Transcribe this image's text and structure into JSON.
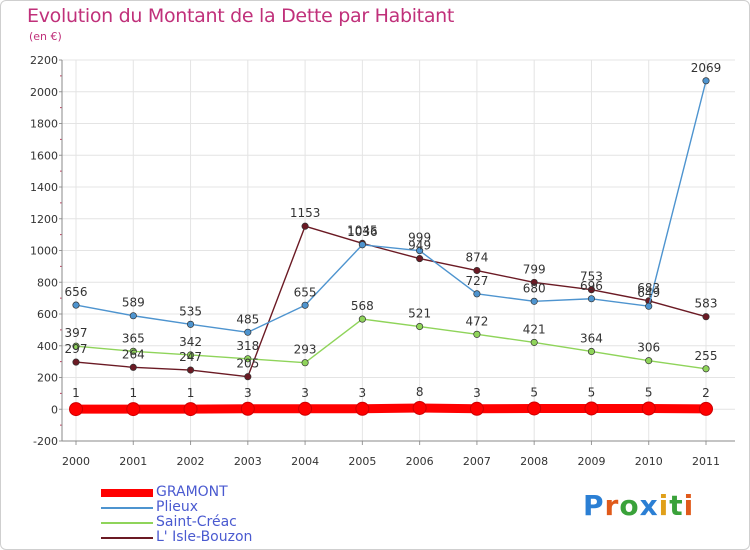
{
  "title": "Evolution du Montant de la Dette par Habitant",
  "subtitle": "(en €)",
  "brand": {
    "letters": [
      "P",
      "r",
      "o",
      "x",
      "i",
      "t",
      "i"
    ],
    "colors": [
      "#2b7fd4",
      "#e05a1a",
      "#3aa23a",
      "#2b7fd4",
      "#e0a01a",
      "#3aa23a",
      "#e05a1a"
    ]
  },
  "chart_data": {
    "type": "line",
    "x": [
      "2000",
      "2001",
      "2002",
      "2003",
      "2004",
      "2005",
      "2006",
      "2007",
      "2008",
      "2009",
      "2010",
      "2011"
    ],
    "ylim": [
      -200,
      2200
    ],
    "yticks": [
      "-200",
      "0",
      "200",
      "400",
      "600",
      "800",
      "1000",
      "1200",
      "1400",
      "1600",
      "1800",
      "2000",
      "2200"
    ],
    "ytick_values": [
      -200,
      0,
      200,
      400,
      600,
      800,
      1000,
      1200,
      1400,
      1600,
      1800,
      2000,
      2200
    ],
    "grid": true,
    "legend_position": "bottom-left",
    "series": [
      {
        "name": "GRAMONT",
        "color": "#ff0000",
        "values": [
          1,
          1,
          1,
          3,
          3,
          3,
          8,
          3,
          5,
          5,
          5,
          2
        ],
        "labels": [
          "1",
          "1",
          "1",
          "3",
          "3",
          "3",
          "8",
          "3",
          "5",
          "5",
          "5",
          "2"
        ],
        "thick": true
      },
      {
        "name": "Plieux",
        "color": "#4e94cf",
        "values": [
          656,
          589,
          535,
          485,
          655,
          1036,
          999,
          727,
          680,
          696,
          649,
          2069
        ],
        "labels": [
          "656",
          "589",
          "535",
          "485",
          "655",
          "1036",
          "999",
          "727",
          "680",
          "696",
          "649",
          "2069"
        ]
      },
      {
        "name": "Saint-Créac",
        "color": "#8fd45a",
        "values": [
          397,
          365,
          342,
          318,
          293,
          568,
          521,
          472,
          421,
          364,
          306,
          255
        ],
        "labels": [
          "397",
          "365",
          "342",
          "318",
          "293",
          "568",
          "521",
          "472",
          "421",
          "364",
          "306",
          "255"
        ]
      },
      {
        "name": "L' Isle-Bouzon",
        "color": "#6b1a24",
        "values": [
          297,
          264,
          247,
          205,
          1153,
          1045,
          949,
          874,
          799,
          753,
          683,
          583
        ],
        "labels": [
          "297",
          "264",
          "247",
          "205",
          "1153",
          "1045",
          "949",
          "874",
          "799",
          "753",
          "683",
          "583"
        ]
      }
    ]
  }
}
